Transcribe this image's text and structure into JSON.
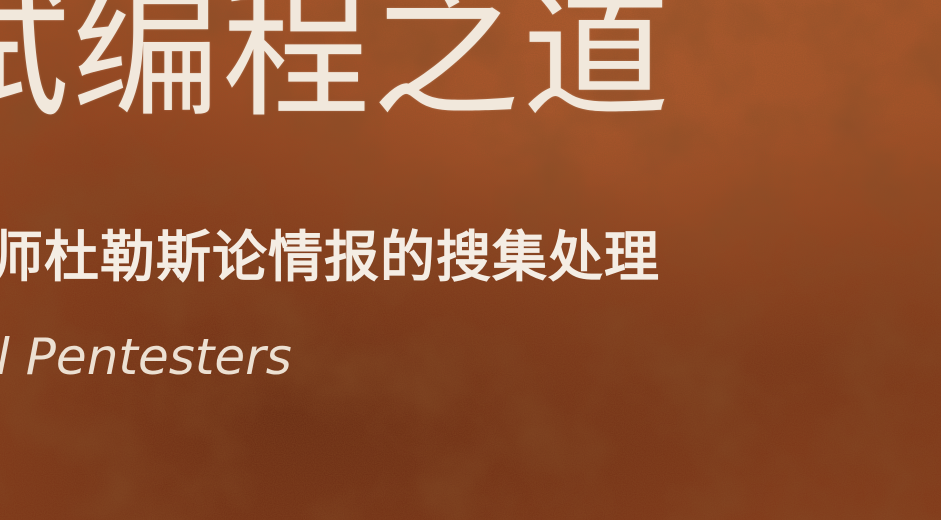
{
  "cover": {
    "title": "试编程之道",
    "subtitle": "师杜勒斯论情报的搜集处理",
    "english_line": "l Pentesters",
    "background_color": "#9a4a22",
    "text_color": "#f1e8dc"
  }
}
